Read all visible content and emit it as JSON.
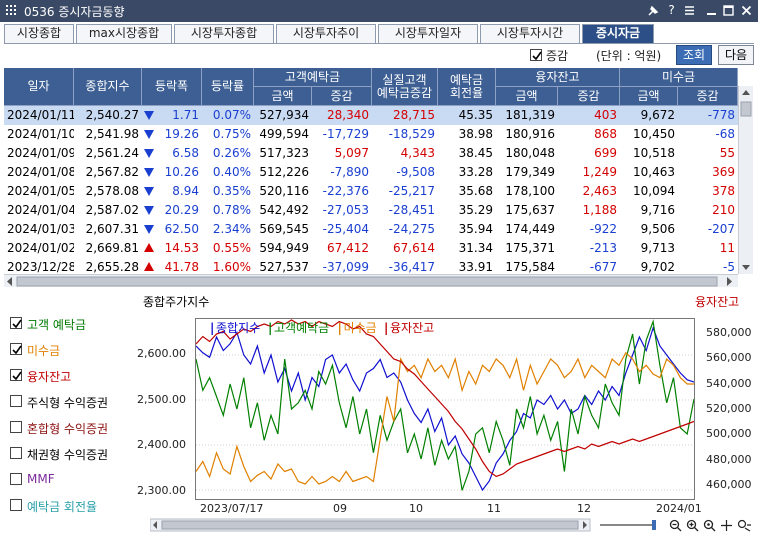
{
  "window": {
    "title": "0536 증시자금동향",
    "accent": "#3a4a66"
  },
  "tabs": [
    {
      "label": "시장종합",
      "active": false
    },
    {
      "label": "max시장종합",
      "active": false
    },
    {
      "label": "시장투자종합",
      "active": false
    },
    {
      "label": "시장투자추이",
      "active": false
    },
    {
      "label": "시장투자일자",
      "active": false
    },
    {
      "label": "시장투자시간",
      "active": false
    },
    {
      "label": "증시자금",
      "active": true
    }
  ],
  "toolbar": {
    "delta_label": "증감",
    "delta_checked": true,
    "unit": "(단위 : 억원)",
    "query_button": "조회",
    "next_button": "다음"
  },
  "table": {
    "headers": {
      "date": "일자",
      "index": "종합지수",
      "change": "등락폭",
      "rate": "등락률",
      "deposit": "고객예탁금",
      "deposit_amount": "금액",
      "deposit_delta": "증감",
      "real_deposit_line1": "실질고객",
      "real_deposit_line2": "예탁금증감",
      "turnover_line1": "예탁금",
      "turnover_line2": "회전율",
      "credit": "융자잔고",
      "credit_amount": "금액",
      "credit_delta": "증감",
      "unpaid": "미수금",
      "unpaid_amount": "금액",
      "unpaid_delta": "증감"
    },
    "rows": [
      {
        "date": "2024/01/11",
        "index": "2,540.27",
        "dir": "down",
        "change": "1.71",
        "rate": "0.07%",
        "dep": "527,934",
        "dep_d": "28,340",
        "real_d": "28,715",
        "turn": "45.35",
        "cred": "181,319",
        "cred_d": "403",
        "unp": "9,672",
        "unp_d": "-778"
      },
      {
        "date": "2024/01/10",
        "index": "2,541.98",
        "dir": "down",
        "change": "19.26",
        "rate": "0.75%",
        "dep": "499,594",
        "dep_d": "-17,729",
        "real_d": "-18,529",
        "turn": "38.98",
        "cred": "180,916",
        "cred_d": "868",
        "unp": "10,450",
        "unp_d": "-68"
      },
      {
        "date": "2024/01/09",
        "index": "2,561.24",
        "dir": "down",
        "change": "6.58",
        "rate": "0.26%",
        "dep": "517,323",
        "dep_d": "5,097",
        "real_d": "4,343",
        "turn": "38.45",
        "cred": "180,048",
        "cred_d": "699",
        "unp": "10,518",
        "unp_d": "55"
      },
      {
        "date": "2024/01/08",
        "index": "2,567.82",
        "dir": "down",
        "change": "10.26",
        "rate": "0.40%",
        "dep": "512,226",
        "dep_d": "-7,890",
        "real_d": "-9,508",
        "turn": "33.28",
        "cred": "179,349",
        "cred_d": "1,249",
        "unp": "10,463",
        "unp_d": "369"
      },
      {
        "date": "2024/01/05",
        "index": "2,578.08",
        "dir": "down",
        "change": "8.94",
        "rate": "0.35%",
        "dep": "520,116",
        "dep_d": "-22,376",
        "real_d": "-25,217",
        "turn": "35.68",
        "cred": "178,100",
        "cred_d": "2,463",
        "unp": "10,094",
        "unp_d": "378"
      },
      {
        "date": "2024/01/04",
        "index": "2,587.02",
        "dir": "down",
        "change": "20.29",
        "rate": "0.78%",
        "dep": "542,492",
        "dep_d": "-27,053",
        "real_d": "-28,451",
        "turn": "35.29",
        "cred": "175,637",
        "cred_d": "1,188",
        "unp": "9,716",
        "unp_d": "210"
      },
      {
        "date": "2024/01/03",
        "index": "2,607.31",
        "dir": "down",
        "change": "62.50",
        "rate": "2.34%",
        "dep": "569,545",
        "dep_d": "-25,404",
        "real_d": "-24,275",
        "turn": "35.94",
        "cred": "174,449",
        "cred_d": "-922",
        "unp": "9,506",
        "unp_d": "-207"
      },
      {
        "date": "2024/01/02",
        "index": "2,669.81",
        "dir": "up",
        "change": "14.53",
        "rate": "0.55%",
        "dep": "594,949",
        "dep_d": "67,412",
        "real_d": "67,614",
        "turn": "31.34",
        "cred": "175,371",
        "cred_d": "-213",
        "unp": "9,713",
        "unp_d": "11"
      },
      {
        "date": "2023/12/28",
        "index": "2,655.28",
        "dir": "up",
        "change": "41.78",
        "rate": "1.60%",
        "dep": "527,537",
        "dep_d": "-37,099",
        "real_d": "-36,417",
        "turn": "33.91",
        "cred": "175,584",
        "cred_d": "-677",
        "unp": "9,702",
        "unp_d": "-5"
      }
    ]
  },
  "chart_panel": {
    "left_title": "종합주가지수",
    "right_title": "융자잔고",
    "series_toggles": [
      {
        "label": "고객 예탁금",
        "checked": true,
        "color": "#007a00"
      },
      {
        "label": "미수금",
        "checked": true,
        "color": "#e08000"
      },
      {
        "label": "융자잔고",
        "checked": true,
        "color": "#c00000"
      },
      {
        "label": "주식형 수익증권",
        "checked": false,
        "color": "#000000"
      },
      {
        "label": "혼합형 수익증권",
        "checked": false,
        "color": "#8b1010"
      },
      {
        "label": "채권형 수익증권",
        "checked": false,
        "color": "#000000"
      },
      {
        "label": "MMF",
        "checked": false,
        "color": "#7a2a9a"
      },
      {
        "label": "예탁금 회전율",
        "checked": false,
        "color": "#2aa0a8"
      }
    ]
  },
  "chart_data": {
    "type": "line",
    "legend": [
      {
        "name": "종합지수",
        "color": "#1010d0"
      },
      {
        "name": "고객예탁금",
        "color": "#008000"
      },
      {
        "name": "미수금",
        "color": "#e08000"
      },
      {
        "name": "융자잔고",
        "color": "#c00000"
      }
    ],
    "x_labels": [
      "2023/07/17",
      "09",
      "10",
      "11",
      "12",
      "2024/01"
    ],
    "y_left": {
      "ticks": [
        "2,600.00",
        "2,500.00",
        "2,400.00",
        "2,300.00"
      ],
      "range": [
        2280,
        2680
      ]
    },
    "y_right": {
      "ticks": [
        "580,000",
        "560,000",
        "540,000",
        "520,000",
        "500,000",
        "480,000",
        "460,000"
      ],
      "range": [
        448000,
        592000
      ]
    },
    "legend_position": "top-left",
    "series": [
      {
        "name": "종합지수",
        "axis": "left",
        "values": [
          2620,
          2605,
          2595,
          2640,
          2610,
          2625,
          2650,
          2600,
          2580,
          2620,
          2560,
          2600,
          2540,
          2570,
          2520,
          2560,
          2500,
          2550,
          2530,
          2590,
          2600,
          2560,
          2580,
          2545,
          2520,
          2560,
          2570,
          2590,
          2550,
          2560,
          2540,
          2500,
          2470,
          2450,
          2480,
          2430,
          2460,
          2400,
          2420,
          2380,
          2360,
          2330,
          2300,
          2320,
          2360,
          2380,
          2410,
          2430,
          2470,
          2460,
          2500,
          2490,
          2510,
          2480,
          2500,
          2470,
          2480,
          2510,
          2490,
          2520,
          2500,
          2530,
          2510,
          2560,
          2600,
          2640,
          2610,
          2660,
          2620,
          2600,
          2580,
          2560,
          2545,
          2540
        ]
      },
      {
        "name": "고객예탁금",
        "axis": "right",
        "values": [
          560000,
          535000,
          545000,
          530000,
          515000,
          540000,
          520000,
          545000,
          505000,
          525000,
          495000,
          515000,
          500000,
          560000,
          520000,
          525000,
          535000,
          520000,
          550000,
          540000,
          555000,
          525000,
          505000,
          530000,
          500000,
          520000,
          485000,
          515000,
          495000,
          510000,
          520000,
          485000,
          500000,
          480000,
          505000,
          475000,
          495000,
          480000,
          490000,
          455000,
          470000,
          500000,
          505000,
          485000,
          510000,
          495000,
          475000,
          520000,
          505000,
          530000,
          500000,
          515000,
          495000,
          510000,
          470000,
          520000,
          500000,
          530000,
          515000,
          505000,
          540000,
          525000,
          515000,
          560000,
          580000,
          540000,
          575000,
          590000,
          555000,
          525000,
          545000,
          505000,
          500000,
          528000
        ]
      },
      {
        "name": "미수금",
        "axis": "right",
        "values": [
          470000,
          478000,
          466000,
          485000,
          472000,
          468000,
          490000,
          474000,
          462000,
          467000,
          470000,
          464000,
          476000,
          470000,
          472000,
          462000,
          460000,
          466000,
          460000,
          462000,
          466000,
          462000,
          470000,
          462000,
          464000,
          466000,
          462000,
          496000,
          530000,
          510000,
          560000,
          550000,
          555000,
          545000,
          560000,
          550000,
          555000,
          545000,
          560000,
          535000,
          550000,
          540000,
          555000,
          550000,
          560000,
          555000,
          545000,
          560000,
          535000,
          555000,
          540000,
          550000,
          560000,
          555000,
          545000,
          550000,
          560000,
          545000,
          555000,
          550000,
          545000,
          560000,
          555000,
          565000,
          560000,
          550000,
          555000,
          548000,
          545000,
          560000,
          555000,
          545000,
          540000,
          540000
        ]
      },
      {
        "name": "융자잔고",
        "axis": "right",
        "values": [
          572000,
          578000,
          574000,
          580000,
          582000,
          576000,
          580000,
          584000,
          582000,
          586000,
          588000,
          586000,
          590000,
          588000,
          592000,
          588000,
          590000,
          586000,
          590000,
          588000,
          586000,
          590000,
          588000,
          584000,
          586000,
          580000,
          578000,
          572000,
          566000,
          560000,
          558000,
          552000,
          548000,
          542000,
          536000,
          530000,
          524000,
          518000,
          510000,
          504000,
          496000,
          488000,
          478000,
          470000,
          466000,
          468000,
          472000,
          476000,
          478000,
          480000,
          482000,
          484000,
          486000,
          488000,
          486000,
          488000,
          490000,
          488000,
          492000,
          490000,
          492000,
          494000,
          492000,
          494000,
          496000,
          494000,
          496000,
          498000,
          500000,
          502000,
          504000,
          506000,
          508000,
          510000
        ]
      }
    ]
  }
}
